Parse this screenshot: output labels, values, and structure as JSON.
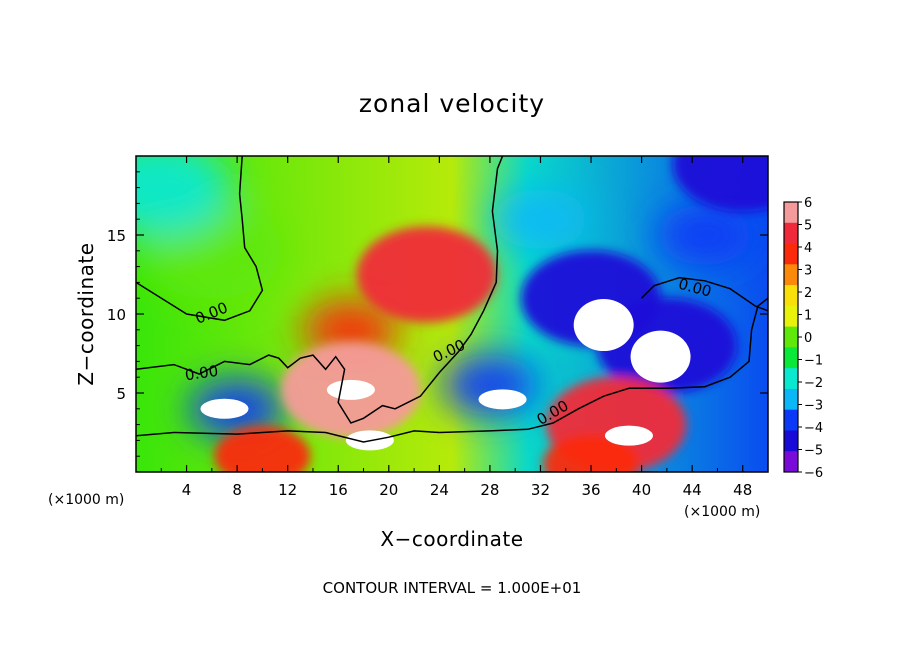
{
  "chart_data": {
    "type": "heatmap",
    "title": "zonal velocity",
    "xlabel": "X−coordinate",
    "ylabel": "Z−coordinate",
    "x_unit": "(×1000 m)",
    "y_unit": "(×1000 m)",
    "xlim": [
      0,
      50
    ],
    "ylim": [
      0,
      20
    ],
    "x_ticks": [
      4,
      8,
      12,
      16,
      20,
      24,
      28,
      32,
      36,
      40,
      44,
      48
    ],
    "x_tick_labels": [
      "4",
      "8",
      "12",
      "16",
      "20",
      "24",
      "28",
      "32",
      "36",
      "40",
      "44",
      "48"
    ],
    "y_ticks": [
      5,
      10,
      15
    ],
    "y_tick_labels": [
      "5",
      "10",
      "15"
    ],
    "colorbar": {
      "min": -6,
      "max": 6,
      "tick_labels": [
        "6",
        "5",
        "4",
        "3",
        "2",
        "1",
        "0",
        "−1",
        "−2",
        "−3",
        "−4",
        "−5",
        "−6"
      ],
      "colors": [
        "#f49a9a",
        "#f02a3a",
        "#fa2a0a",
        "#fb8a0a",
        "#fae00a",
        "#e8f20a",
        "#60e80a",
        "#0ae83a",
        "#0ae8d0",
        "#0ab8f8",
        "#0a3af8",
        "#1a0ad8",
        "#7a0ad8"
      ]
    },
    "contour_labels": [
      "0.00",
      "0.00",
      "0.00",
      "0.00",
      "0.00"
    ],
    "contour_interval_text": "CONTOUR INTERVAL = 1.000E+01",
    "field_features": [
      {
        "x": 23,
        "z": 12.5,
        "value": 5
      },
      {
        "x": 17,
        "z": 9,
        "value": 4
      },
      {
        "x": 17,
        "z": 5.2,
        "value": 6
      },
      {
        "x": 6,
        "z": 14,
        "value": 0
      },
      {
        "x": 2,
        "z": 18,
        "value": -2
      },
      {
        "x": 32,
        "z": 16,
        "value": -3
      },
      {
        "x": 45,
        "z": 15,
        "value": -4
      },
      {
        "x": 48,
        "z": 19.5,
        "value": -5
      },
      {
        "x": 36,
        "z": 11,
        "value": -5
      },
      {
        "x": 42,
        "z": 8,
        "value": -5
      },
      {
        "x": 28,
        "z": 5.5,
        "value": -4
      },
      {
        "x": 8,
        "z": 4,
        "value": -4
      },
      {
        "x": 38,
        "z": 3,
        "value": 5
      },
      {
        "x": 10,
        "z": 1,
        "value": 4
      },
      {
        "x": 36,
        "z": 0.5,
        "value": 4
      }
    ],
    "saturated_regions": [
      {
        "extreme": "min",
        "x": 37,
        "z": 9.3
      },
      {
        "x": 41.5,
        "z": 7.3,
        "extreme": "min"
      },
      {
        "x": 29,
        "z": 4.6,
        "extreme": "min"
      },
      {
        "x": 39,
        "z": 2.3,
        "extreme": "max"
      },
      {
        "x": 7,
        "z": 4,
        "extreme": "min"
      },
      {
        "x": 17,
        "z": 5.2,
        "extreme": "max"
      },
      {
        "x": 18.5,
        "z": 2,
        "extreme": "min"
      }
    ]
  }
}
